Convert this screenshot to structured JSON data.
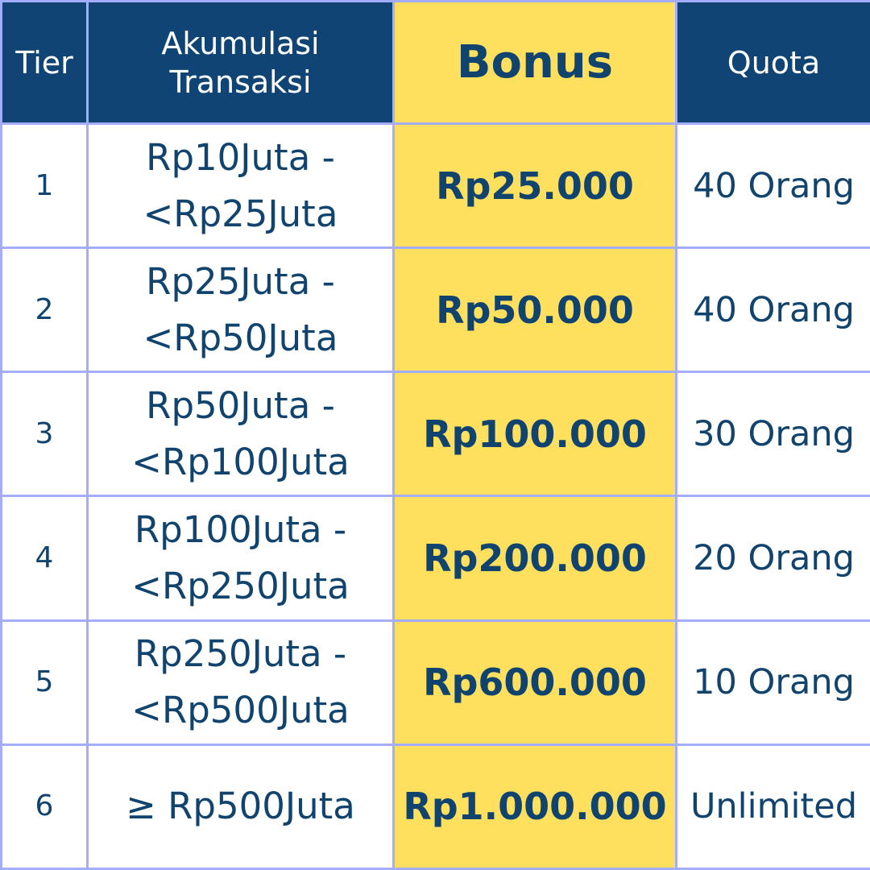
{
  "header": {
    "tier": "Tier",
    "akumulasi_line1": "Akumulasi",
    "akumulasi_line2": "Transaksi",
    "bonus": "Bonus",
    "quota": "Quota"
  },
  "rows": [
    {
      "tier": "1",
      "range_line1": "Rp10Juta -",
      "range_line2": "<Rp25Juta",
      "bonus": "Rp25.000",
      "quota": "40 Orang"
    },
    {
      "tier": "2",
      "range_line1": "Rp25Juta -",
      "range_line2": "<Rp50Juta",
      "bonus": "Rp50.000",
      "quota": "40 Orang"
    },
    {
      "tier": "3",
      "range_line1": "Rp50Juta -",
      "range_line2": "<Rp100Juta",
      "bonus": "Rp100.000",
      "quota": "30 Orang"
    },
    {
      "tier": "4",
      "range_line1": "Rp100Juta -",
      "range_line2": "<Rp250Juta",
      "bonus": "Rp200.000",
      "quota": "20 Orang"
    },
    {
      "tier": "5",
      "range_line1": "Rp250Juta -",
      "range_line2": "<Rp500Juta",
      "bonus": "Rp600.000",
      "quota": "10 Orang"
    },
    {
      "tier": "6",
      "range_line1": "≥ Rp500Juta",
      "range_line2": "",
      "bonus": "Rp1.000.000",
      "quota": "Unlimited"
    }
  ],
  "colors": {
    "header_bg": "#0f4475",
    "bonus_bg": "#ffdf5e",
    "border": "#a3adfc",
    "text": "#10446f"
  }
}
